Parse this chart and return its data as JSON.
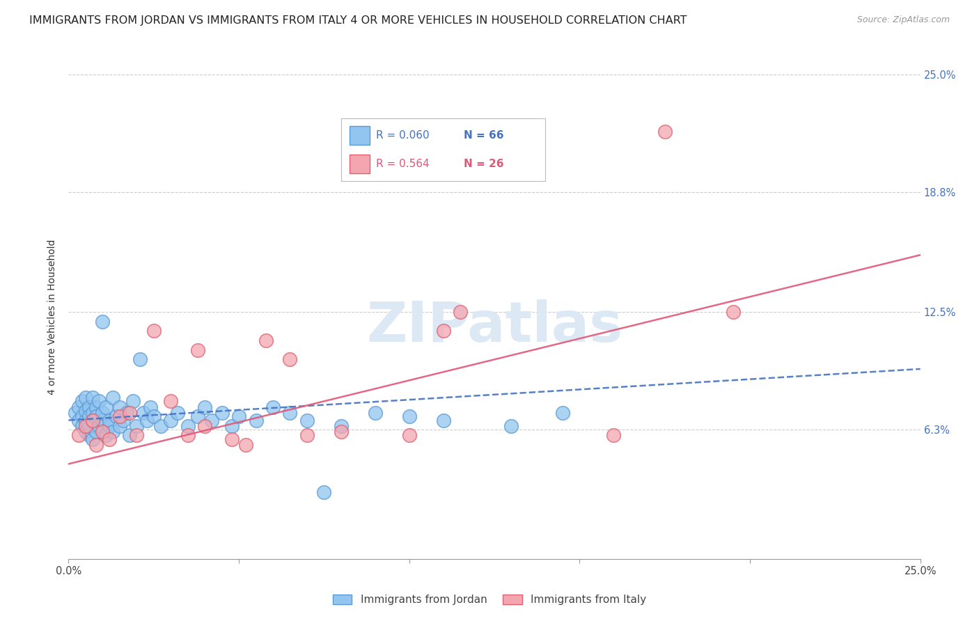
{
  "title": "IMMIGRANTS FROM JORDAN VS IMMIGRANTS FROM ITALY 4 OR MORE VEHICLES IN HOUSEHOLD CORRELATION CHART",
  "source": "Source: ZipAtlas.com",
  "ylabel": "4 or more Vehicles in Household",
  "xlim": [
    0.0,
    0.25
  ],
  "ylim": [
    -0.005,
    0.25
  ],
  "ytick_values": [
    0.063,
    0.125,
    0.188,
    0.25
  ],
  "ytick_labels": [
    "6.3%",
    "12.5%",
    "18.8%",
    "25.0%"
  ],
  "xtick_values": [
    0.0,
    0.05,
    0.1,
    0.15,
    0.2,
    0.25
  ],
  "xtick_labels": [
    "0.0%",
    "",
    "",
    "",
    "",
    "25.0%"
  ],
  "legend_jordan_R": "R = 0.060",
  "legend_jordan_N": "N = 66",
  "legend_italy_R": "R = 0.564",
  "legend_italy_N": "N = 26",
  "jordan_color": "#92c5f0",
  "jordan_edge_color": "#5b9bd5",
  "italy_color": "#f4a6b0",
  "italy_edge_color": "#e06070",
  "jordan_line_color": "#4472c4",
  "italy_line_color": "#e05878",
  "watermark_color": "#dde8f5",
  "background_color": "#ffffff",
  "title_fontsize": 11.5,
  "source_fontsize": 9,
  "axis_label_fontsize": 10,
  "tick_fontsize": 10.5,
  "legend_fontsize": 11,
  "jordan_x": [
    0.002,
    0.003,
    0.003,
    0.004,
    0.004,
    0.004,
    0.005,
    0.005,
    0.005,
    0.005,
    0.006,
    0.006,
    0.006,
    0.006,
    0.007,
    0.007,
    0.007,
    0.007,
    0.008,
    0.008,
    0.008,
    0.009,
    0.009,
    0.01,
    0.01,
    0.01,
    0.011,
    0.011,
    0.012,
    0.012,
    0.013,
    0.013,
    0.014,
    0.015,
    0.015,
    0.016,
    0.017,
    0.018,
    0.019,
    0.02,
    0.021,
    0.022,
    0.023,
    0.024,
    0.025,
    0.027,
    0.03,
    0.032,
    0.035,
    0.038,
    0.04,
    0.042,
    0.045,
    0.048,
    0.05,
    0.055,
    0.06,
    0.065,
    0.07,
    0.075,
    0.08,
    0.09,
    0.1,
    0.11,
    0.13,
    0.145
  ],
  "jordan_y": [
    0.072,
    0.068,
    0.075,
    0.07,
    0.065,
    0.078,
    0.062,
    0.08,
    0.068,
    0.073,
    0.06,
    0.075,
    0.07,
    0.065,
    0.072,
    0.068,
    0.08,
    0.058,
    0.075,
    0.062,
    0.07,
    0.065,
    0.078,
    0.12,
    0.068,
    0.072,
    0.06,
    0.075,
    0.065,
    0.068,
    0.062,
    0.08,
    0.07,
    0.075,
    0.065,
    0.068,
    0.072,
    0.06,
    0.078,
    0.065,
    0.1,
    0.072,
    0.068,
    0.075,
    0.07,
    0.065,
    0.068,
    0.072,
    0.065,
    0.07,
    0.075,
    0.068,
    0.072,
    0.065,
    0.07,
    0.068,
    0.075,
    0.072,
    0.068,
    0.03,
    0.065,
    0.072,
    0.07,
    0.068,
    0.065,
    0.072
  ],
  "italy_x": [
    0.003,
    0.005,
    0.007,
    0.008,
    0.01,
    0.012,
    0.015,
    0.018,
    0.02,
    0.025,
    0.03,
    0.035,
    0.038,
    0.04,
    0.048,
    0.052,
    0.058,
    0.065,
    0.07,
    0.08,
    0.1,
    0.11,
    0.115,
    0.16,
    0.175,
    0.195
  ],
  "italy_y": [
    0.06,
    0.065,
    0.068,
    0.055,
    0.062,
    0.058,
    0.07,
    0.072,
    0.06,
    0.115,
    0.078,
    0.06,
    0.105,
    0.065,
    0.058,
    0.055,
    0.11,
    0.1,
    0.06,
    0.062,
    0.06,
    0.115,
    0.125,
    0.06,
    0.22,
    0.125
  ],
  "jordan_line_x": [
    0.0,
    0.25
  ],
  "jordan_line_y": [
    0.068,
    0.095
  ],
  "italy_line_x": [
    0.0,
    0.25
  ],
  "italy_line_y": [
    0.045,
    0.155
  ]
}
